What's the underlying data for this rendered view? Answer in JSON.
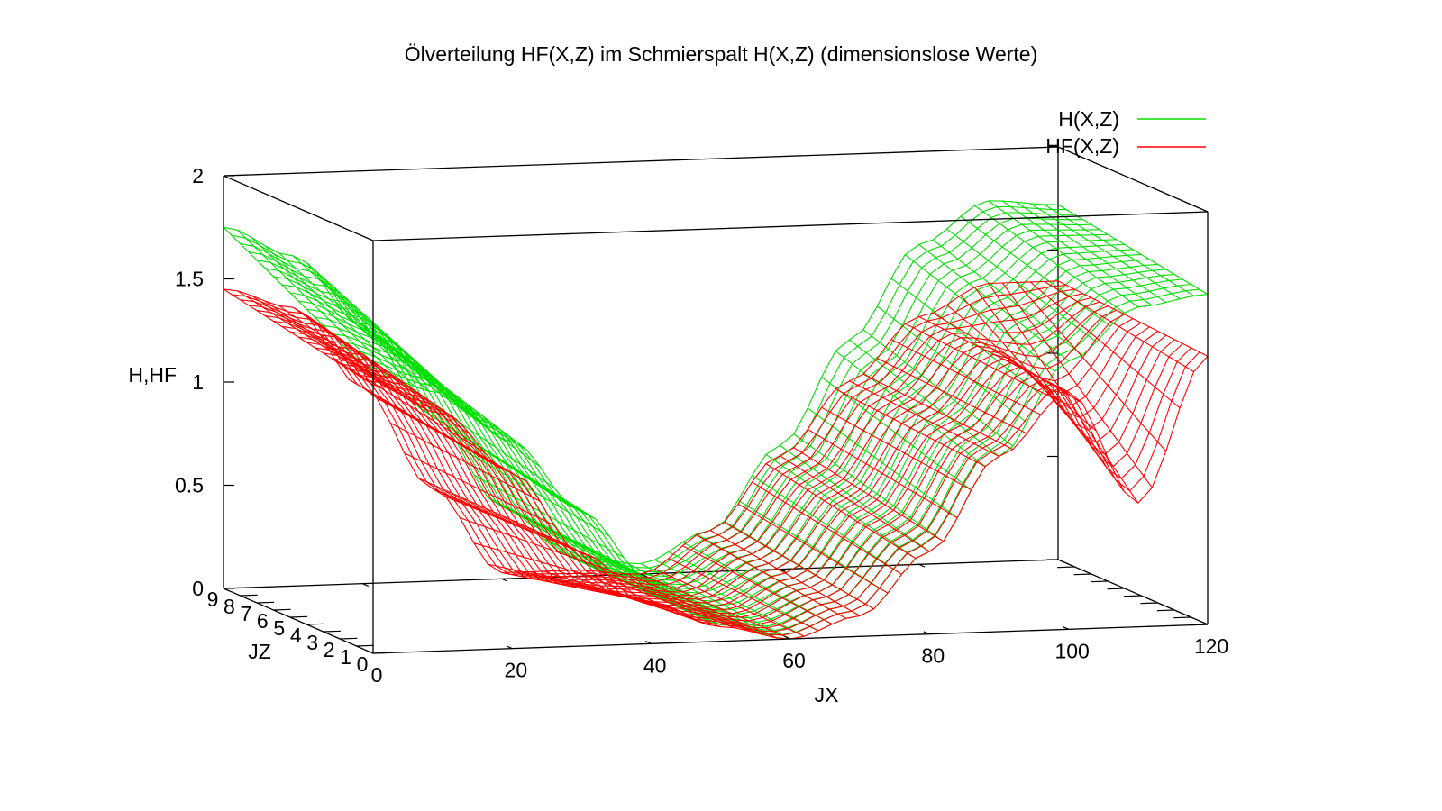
{
  "chart_data": {
    "type": "surface-3d",
    "title": "Ölverteilung HF(X,Z) im Schmierspalt H(X,Z) (dimensionslose Werte)",
    "xlabel": "JX",
    "ylabel": "JZ",
    "zlabel": "H,HF",
    "xlim": [
      0,
      120
    ],
    "ylim": [
      0,
      9
    ],
    "zlim": [
      0,
      2
    ],
    "x_ticks": [
      "0",
      "20",
      "40",
      "60",
      "80",
      "100",
      "120"
    ],
    "y_ticks": [
      "0",
      "1",
      "2",
      "3",
      "4",
      "5",
      "6",
      "7",
      "8",
      "9"
    ],
    "z_ticks": [
      "0",
      "0.5",
      "1",
      "1.5",
      "2"
    ],
    "legend_position": "top-right",
    "series": [
      {
        "name": "H(X,Z)",
        "color": "#00e000",
        "x": [
          0,
          10,
          20,
          30,
          40,
          50,
          60,
          70,
          80,
          90,
          100,
          110,
          120
        ],
        "values_at_jz0": [
          1.35,
          1.25,
          1.0,
          0.65,
          0.3,
          0.08,
          0.0,
          0.1,
          0.4,
          0.85,
          1.3,
          1.55,
          1.6
        ],
        "values_at_jz9": [
          1.75,
          1.6,
          1.25,
          0.8,
          0.35,
          0.1,
          0.05,
          0.2,
          0.6,
          1.1,
          1.55,
          1.75,
          1.72
        ]
      },
      {
        "name": "HF(X,Z)",
        "color": "#ff0000",
        "x": [
          0,
          10,
          20,
          30,
          40,
          50,
          60,
          70,
          80,
          90,
          100,
          110,
          120
        ],
        "values_at_jz0": [
          1.3,
          1.15,
          0.85,
          0.45,
          0.2,
          0.07,
          0.0,
          0.1,
          0.4,
          0.85,
          1.15,
          0.6,
          1.3
        ],
        "values_at_jz9": [
          1.45,
          1.35,
          0.95,
          0.45,
          0.03,
          0.03,
          0.0,
          0.2,
          0.55,
          0.9,
          1.2,
          1.35,
          1.35
        ]
      }
    ]
  }
}
